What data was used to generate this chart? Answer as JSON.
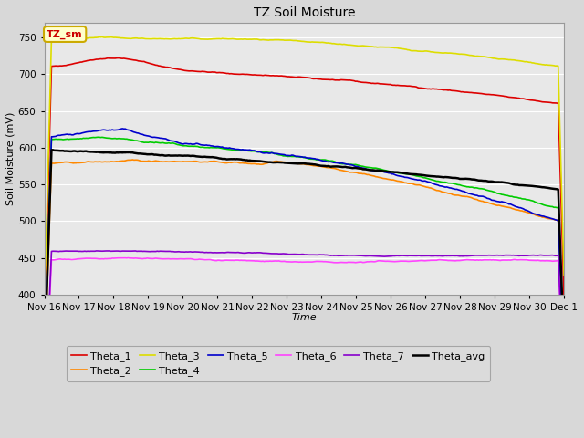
{
  "title": "TZ Soil Moisture",
  "xlabel": "Time",
  "ylabel": "Soil Moisture (mV)",
  "ylim": [
    400,
    770
  ],
  "yticks": [
    400,
    450,
    500,
    550,
    600,
    650,
    700,
    750
  ],
  "fig_bg_color": "#d8d8d8",
  "plot_bg_color": "#e8e8e8",
  "legend_label": "TZ_sm",
  "legend_box_facecolor": "#ffffcc",
  "legend_box_edgecolor": "#ccaa00",
  "xtick_labels": [
    "Nov 16",
    "Nov 17",
    "Nov 18",
    "Nov 19",
    "Nov 20",
    "Nov 21",
    "Nov 22",
    "Nov 23",
    "Nov 24",
    "Nov 25",
    "Nov 26",
    "Nov 27",
    "Nov 28",
    "Nov 29",
    "Nov 30",
    "Dec 1"
  ],
  "series_order": [
    "Theta_1",
    "Theta_2",
    "Theta_3",
    "Theta_4",
    "Theta_5",
    "Theta_6",
    "Theta_7",
    "Theta_avg"
  ],
  "series": {
    "Theta_1": {
      "color": "#dd0000",
      "linewidth": 1.2
    },
    "Theta_2": {
      "color": "#ff8800",
      "linewidth": 1.2
    },
    "Theta_3": {
      "color": "#dddd00",
      "linewidth": 1.2
    },
    "Theta_4": {
      "color": "#00cc00",
      "linewidth": 1.2
    },
    "Theta_5": {
      "color": "#0000cc",
      "linewidth": 1.2
    },
    "Theta_6": {
      "color": "#ff44ff",
      "linewidth": 1.2
    },
    "Theta_7": {
      "color": "#8800cc",
      "linewidth": 1.2
    },
    "Theta_avg": {
      "color": "#000000",
      "linewidth": 1.8
    }
  },
  "legend_row1": [
    "Theta_1",
    "Theta_2",
    "Theta_3",
    "Theta_4",
    "Theta_5",
    "Theta_6"
  ],
  "legend_row2": [
    "Theta_7",
    "Theta_avg"
  ]
}
